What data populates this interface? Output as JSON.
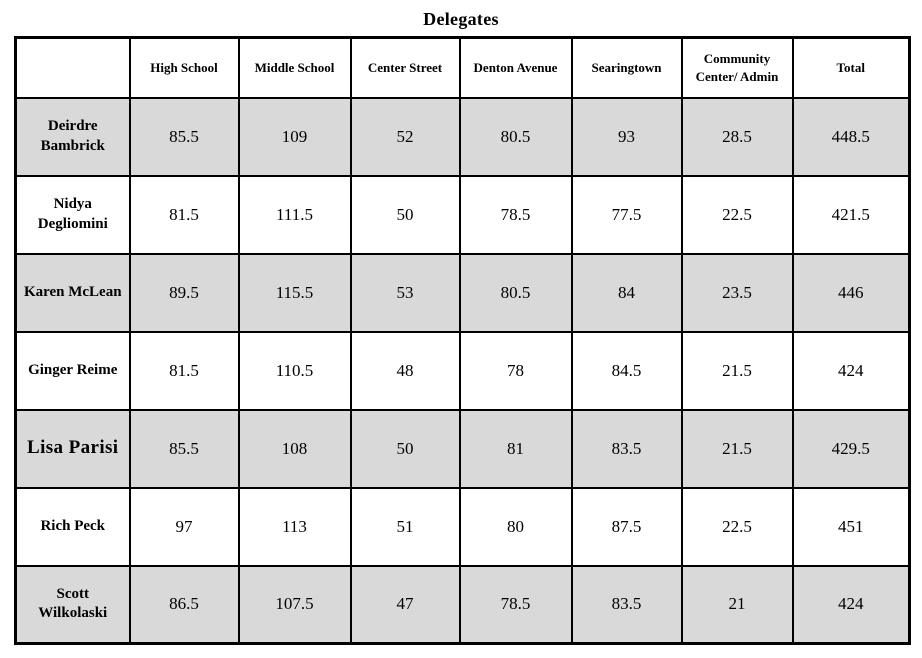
{
  "page_title": "Delegates",
  "colors": {
    "shaded_row": "#d9d9d9",
    "border": "#000000",
    "background": "#ffffff"
  },
  "table": {
    "column_headers": [
      "",
      "High School",
      "Middle School",
      "Center Street",
      "Denton Avenue",
      "Searingtown",
      "Community Center/ Admin",
      "Total"
    ],
    "rows": [
      {
        "name": "Deirdre Bambrick",
        "values": [
          "85.5",
          "109",
          "52",
          "80.5",
          "93",
          "28.5",
          "448.5"
        ]
      },
      {
        "name": "Nidya Degliomini",
        "values": [
          "81.5",
          "111.5",
          "50",
          "78.5",
          "77.5",
          "22.5",
          "421.5"
        ]
      },
      {
        "name": "Karen McLean",
        "values": [
          "89.5",
          "115.5",
          "53",
          "80.5",
          "84",
          "23.5",
          "446"
        ]
      },
      {
        "name": "Ginger Reime",
        "values": [
          "81.5",
          "110.5",
          "48",
          "78",
          "84.5",
          "21.5",
          "424"
        ]
      },
      {
        "name": "Lisa Parisi",
        "values": [
          "85.5",
          "108",
          "50",
          "81",
          "83.5",
          "21.5",
          "429.5"
        ]
      },
      {
        "name": "Rich Peck",
        "values": [
          "97",
          "113",
          "51",
          "80",
          "87.5",
          "22.5",
          "451"
        ]
      },
      {
        "name": "Scott Wilkolaski",
        "values": [
          "86.5",
          "107.5",
          "47",
          "78.5",
          "83.5",
          "21",
          "424"
        ]
      }
    ]
  },
  "chart_data": {
    "type": "table",
    "title": "Delegates",
    "columns": [
      "",
      "High School",
      "Middle School",
      "Center Street",
      "Denton Avenue",
      "Searingtown",
      "Community Center/ Admin",
      "Total"
    ],
    "rows": [
      [
        "Deirdre Bambrick",
        85.5,
        109,
        52,
        80.5,
        93,
        28.5,
        448.5
      ],
      [
        "Nidya Degliomini",
        81.5,
        111.5,
        50,
        78.5,
        77.5,
        22.5,
        421.5
      ],
      [
        "Karen McLean",
        89.5,
        115.5,
        53,
        80.5,
        84,
        23.5,
        446
      ],
      [
        "Ginger Reime",
        81.5,
        110.5,
        48,
        78,
        84.5,
        21.5,
        424
      ],
      [
        "Lisa Parisi",
        85.5,
        108,
        50,
        81,
        83.5,
        21.5,
        429.5
      ],
      [
        "Rich Peck",
        97,
        113,
        51,
        80,
        87.5,
        22.5,
        451
      ],
      [
        "Scott Wilkolaski",
        86.5,
        107.5,
        47,
        78.5,
        83.5,
        21,
        424
      ]
    ],
    "layout": {
      "shaded_rows": "odd",
      "shade_color": "#d9d9d9",
      "grid": true,
      "title_position": "top-center"
    }
  }
}
